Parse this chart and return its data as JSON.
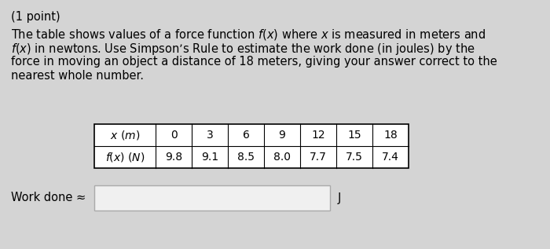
{
  "title_line": "(1 point)",
  "body_lines": [
    "The table shows values of a force function $f(x)$ where $x$ is measured in meters and",
    "$f(x)$ in newtons. Use Simpson’s Rule to estimate the work done (in joules) by the",
    "force in moving an object a distance of 18 meters, giving your answer correct to the",
    "nearest whole number."
  ],
  "table_col_values": [
    "0",
    "3",
    "6",
    "9",
    "12",
    "15",
    "18"
  ],
  "table_fx_values": [
    "9.8",
    "9.1",
    "8.5",
    "8.0",
    "7.7",
    "7.5",
    "7.4"
  ],
  "work_done_label": "Work done ≈",
  "unit_label": "J",
  "bg_color": "#d4d4d4",
  "font_size_body": 10.5,
  "font_size_table": 10.0,
  "font_size_title": 10.5
}
